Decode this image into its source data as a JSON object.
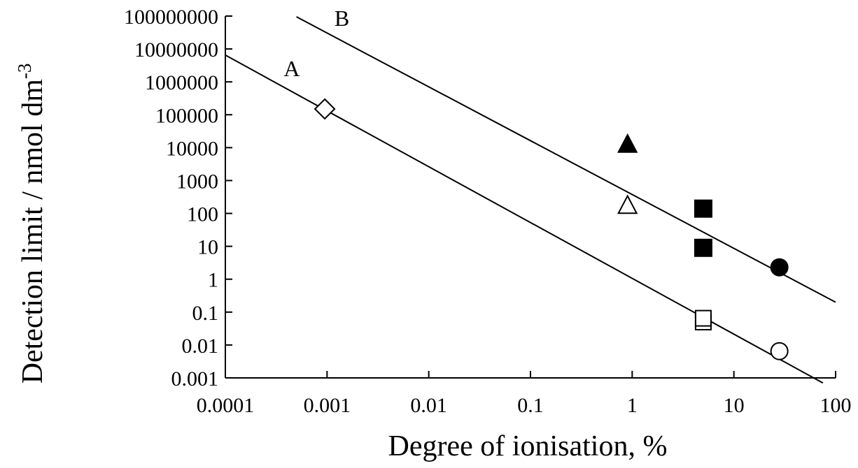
{
  "chart_data": {
    "type": "scatter",
    "title": "",
    "xlabel": "Degree of ionisation, %",
    "ylabel": "Detection limit / nmol dm",
    "ylabel_superscript": "-3",
    "xscale": "log",
    "yscale": "log",
    "xlim": [
      0.0001,
      100
    ],
    "ylim": [
      0.001,
      100000000
    ],
    "x_tick_labels": [
      "0.0001",
      "0.001",
      "0.01",
      "0.1",
      "1",
      "10",
      "100"
    ],
    "y_tick_labels": [
      "0.001",
      "0.01",
      "0.1",
      "1",
      "10",
      "100",
      "1000",
      "10000",
      "100000",
      "1000000",
      "10000000",
      "100000000"
    ],
    "grid": false,
    "legend": "none",
    "lines": [
      {
        "name": "A",
        "points": [
          [
            0.0001,
            6500000
          ],
          [
            75,
            0.0007
          ]
        ]
      },
      {
        "name": "B",
        "points": [
          [
            0.0005,
            95000000
          ],
          [
            100,
            0.2
          ]
        ]
      }
    ],
    "series": [
      {
        "marker": "open-diamond",
        "points": [
          [
            0.00095,
            150000
          ]
        ]
      },
      {
        "marker": "open-triangle",
        "points": [
          [
            0.9,
            180
          ]
        ]
      },
      {
        "marker": "filled-triangle",
        "points": [
          [
            0.9,
            13000
          ]
        ]
      },
      {
        "marker": "open-square",
        "points": [
          [
            5,
            0.05
          ],
          [
            5,
            0.065
          ]
        ]
      },
      {
        "marker": "filled-square",
        "points": [
          [
            5,
            9
          ],
          [
            5,
            140
          ]
        ]
      },
      {
        "marker": "filled-circle",
        "points": [
          [
            28,
            2.3
          ]
        ]
      },
      {
        "marker": "open-circle",
        "points": [
          [
            28,
            0.0065
          ]
        ]
      }
    ]
  }
}
